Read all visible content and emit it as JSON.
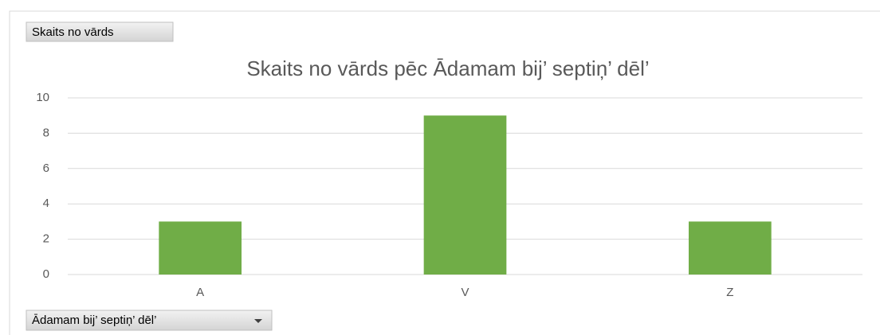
{
  "chart_data": {
    "type": "bar",
    "title": "Skaits no vārds  pēc Ādamam bij’ septiņ’ dēl’",
    "categories": [
      "A",
      "V",
      "Z"
    ],
    "values": [
      3,
      9,
      3
    ],
    "color": "#70ad47",
    "ylim": [
      0,
      10
    ],
    "yticks": [
      0,
      2,
      4,
      6,
      8,
      10
    ],
    "grid": true
  },
  "field_buttons": {
    "values_field": "Skaits no vārds",
    "axis_field": "Ādamam bij’ septiņ’ dēl’"
  }
}
